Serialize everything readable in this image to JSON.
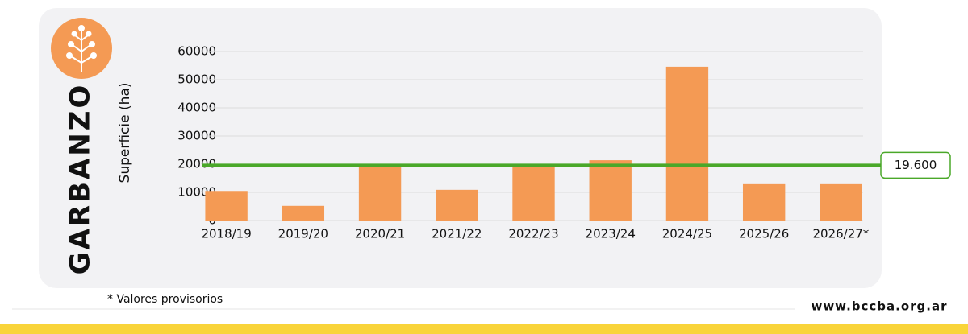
{
  "chart_data": {
    "type": "bar",
    "title": "GARBANZO",
    "y_label": "Superficie (ha)",
    "categories": [
      "2018/19",
      "2019/20",
      "2020/21",
      "2021/22",
      "2022/23",
      "2023/24",
      "2024/25",
      "2025/26",
      "2026/27*"
    ],
    "values": [
      10500,
      5200,
      19400,
      10900,
      18900,
      21400,
      54600,
      12900,
      12900
    ],
    "color": "#f49a54",
    "ylim": [
      0,
      60000
    ],
    "yticks": [
      0,
      10000,
      20000,
      30000,
      40000,
      50000,
      60000
    ],
    "grid": true,
    "reference_line": {
      "value": 19600,
      "label": "19.600",
      "color": "#4aa829"
    },
    "footnote": "*  Valores provisorios",
    "source": "www.bccba.org.ar"
  }
}
